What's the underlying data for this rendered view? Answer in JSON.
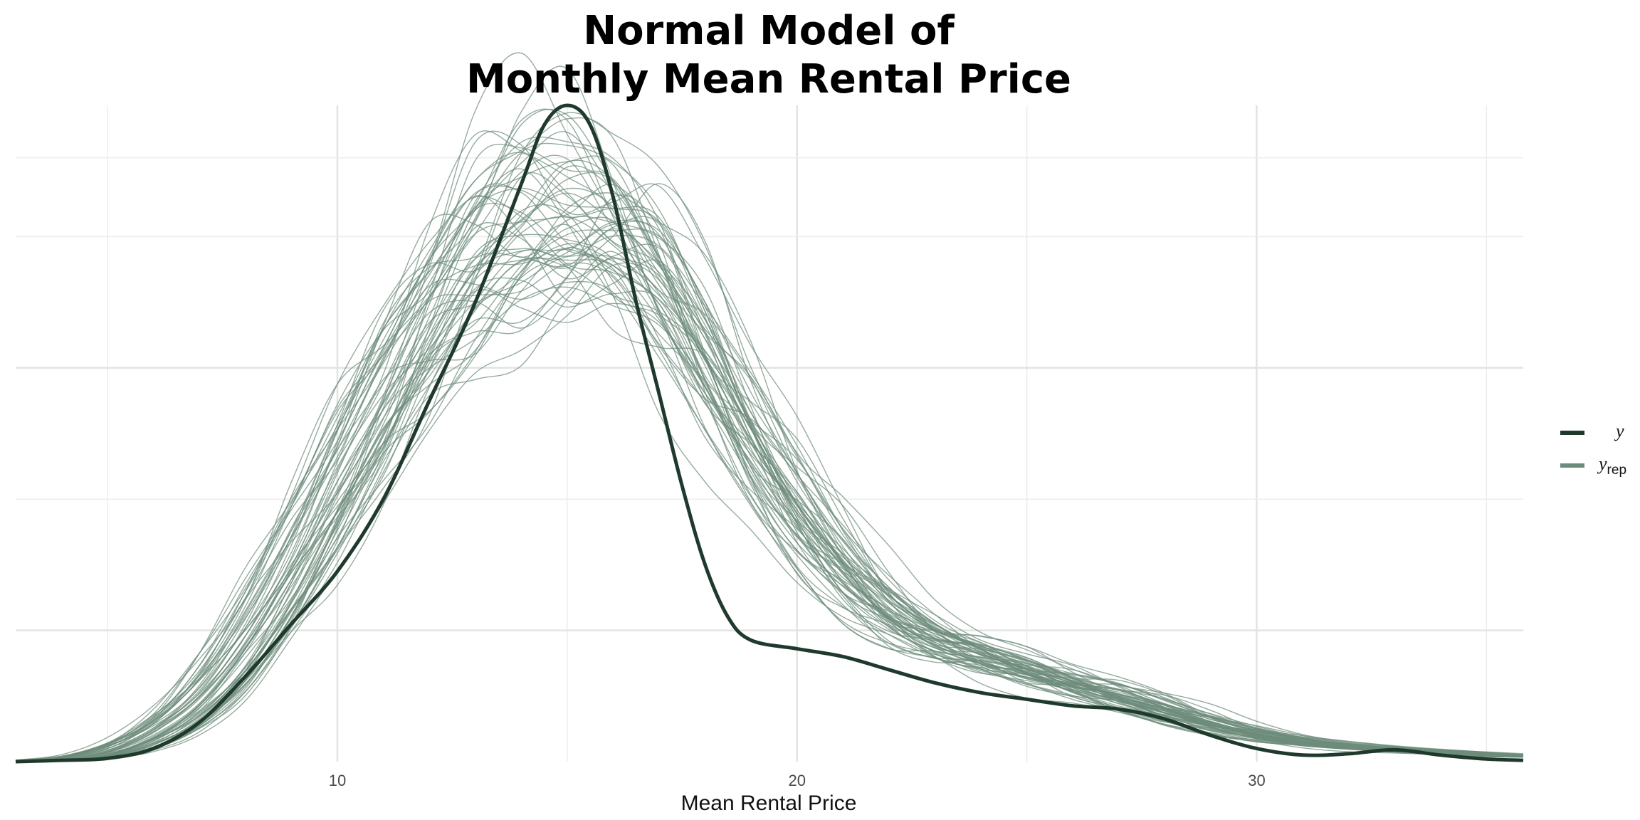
{
  "chart_data": {
    "type": "line",
    "title_lines": [
      "Normal Model of",
      "Monthly Mean Rental Price"
    ],
    "xlabel": "Mean Rental Price",
    "ylabel": "",
    "xlim": [
      3,
      35.8
    ],
    "ylim": [
      0,
      1.0
    ],
    "x_ticks": [
      10,
      20,
      30
    ],
    "x_tick_labels": [
      "10",
      "20",
      "30"
    ],
    "x_grid_major": [
      10,
      20,
      30
    ],
    "x_grid_minor": [
      5,
      15,
      25,
      35
    ],
    "y_grid_major": [
      0.2,
      0.6
    ],
    "y_grid_minor": [
      0.4,
      0.8,
      0.92
    ],
    "y_axis_labels": "none",
    "grid": true,
    "legend_position": "right",
    "legend": [
      {
        "key": "y",
        "label": "y",
        "subscript": "",
        "color": "#1f3a2c"
      },
      {
        "key": "yrep",
        "label": "y",
        "subscript": "rep",
        "color": "#6e8c7c"
      }
    ],
    "series": [
      {
        "name": "y",
        "color": "#1f3a2c",
        "x": [
          3.0,
          4.0,
          5.0,
          6.0,
          7.0,
          8.0,
          9.0,
          10.0,
          11.0,
          12.0,
          13.0,
          14.0,
          14.5,
          15.0,
          15.5,
          16.0,
          16.5,
          17.0,
          17.5,
          18.0,
          18.5,
          19.0,
          20.0,
          21.0,
          22.0,
          23.0,
          24.0,
          25.0,
          26.0,
          27.0,
          28.0,
          29.0,
          30.0,
          31.0,
          32.0,
          33.0,
          34.0,
          35.0,
          35.8
        ],
        "y": [
          0.0,
          0.002,
          0.005,
          0.02,
          0.06,
          0.13,
          0.21,
          0.29,
          0.4,
          0.55,
          0.7,
          0.88,
          0.97,
          1.0,
          0.97,
          0.86,
          0.7,
          0.56,
          0.42,
          0.3,
          0.22,
          0.185,
          0.172,
          0.16,
          0.14,
          0.12,
          0.105,
          0.095,
          0.085,
          0.08,
          0.065,
          0.04,
          0.02,
          0.01,
          0.012,
          0.018,
          0.01,
          0.004,
          0.002
        ]
      }
    ],
    "replicates": {
      "name": "y_rep",
      "color": "#6e8c7c",
      "count": 60,
      "x": [
        3.0,
        4.0,
        5.0,
        6.0,
        7.0,
        8.0,
        9.0,
        10.0,
        11.0,
        12.0,
        13.0,
        14.0,
        15.0,
        16.0,
        17.0,
        18.0,
        19.0,
        20.0,
        21.0,
        22.0,
        23.0,
        24.0,
        25.0,
        26.0,
        27.0,
        28.0,
        29.0,
        30.0,
        31.0,
        32.0,
        33.0,
        34.0,
        35.0,
        35.8
      ],
      "mean_y": [
        0.0,
        0.003,
        0.012,
        0.04,
        0.09,
        0.18,
        0.29,
        0.42,
        0.55,
        0.67,
        0.76,
        0.81,
        0.83,
        0.8,
        0.72,
        0.6,
        0.47,
        0.36,
        0.28,
        0.22,
        0.18,
        0.155,
        0.135,
        0.115,
        0.095,
        0.075,
        0.055,
        0.04,
        0.028,
        0.022,
        0.018,
        0.014,
        0.01,
        0.008
      ]
    }
  }
}
